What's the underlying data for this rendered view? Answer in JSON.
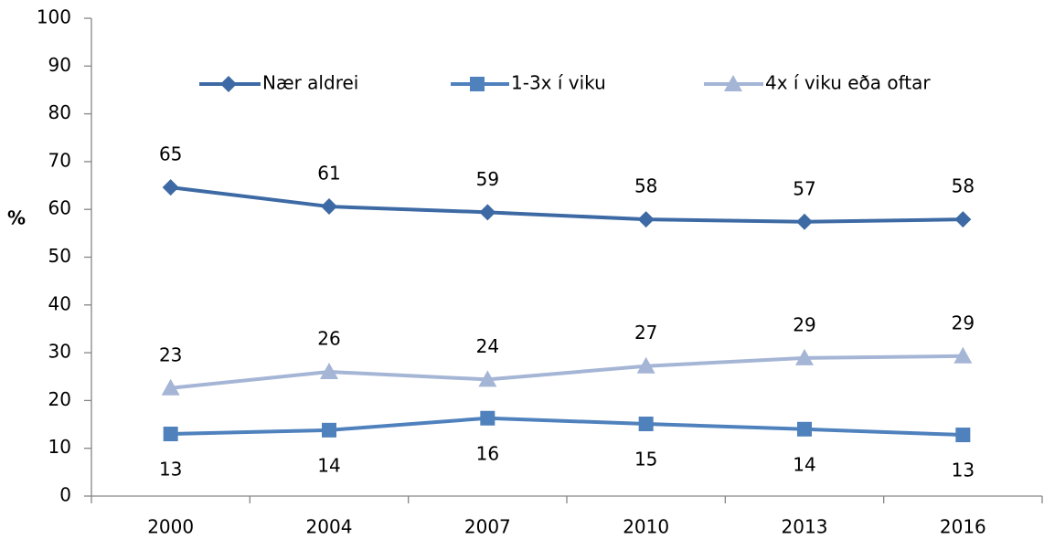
{
  "chart_data": {
    "type": "line",
    "y_label": "%",
    "categories": [
      "2000",
      "2004",
      "2007",
      "2010",
      "2013",
      "2016"
    ],
    "series": [
      {
        "name": "Nær aldrei",
        "color": "#3d6aa4",
        "marker": "diamond",
        "values": [
          64.6,
          60.6,
          59.4,
          57.9,
          57.4,
          57.9
        ],
        "value_labels": [
          "65",
          "61",
          "59",
          "58",
          "57",
          "58"
        ]
      },
      {
        "name": "1-3x í viku",
        "color": "#4f81bd",
        "marker": "square",
        "values": [
          13.0,
          13.8,
          16.3,
          15.1,
          14.0,
          12.8
        ],
        "value_labels": [
          "13",
          "14",
          "16",
          "15",
          "14",
          "13"
        ]
      },
      {
        "name": "4x í viku eða oftar",
        "color": "#a5b5d5",
        "marker": "triangle",
        "values": [
          22.6,
          26.0,
          24.4,
          27.2,
          28.9,
          29.3
        ],
        "value_labels": [
          "23",
          "26",
          "24",
          "27",
          "29",
          "29"
        ]
      }
    ],
    "ylim": [
      0,
      100
    ],
    "yticks": [
      0,
      10,
      20,
      30,
      40,
      50,
      60,
      70,
      80,
      90,
      100
    ],
    "grid": false,
    "legend": "top"
  }
}
